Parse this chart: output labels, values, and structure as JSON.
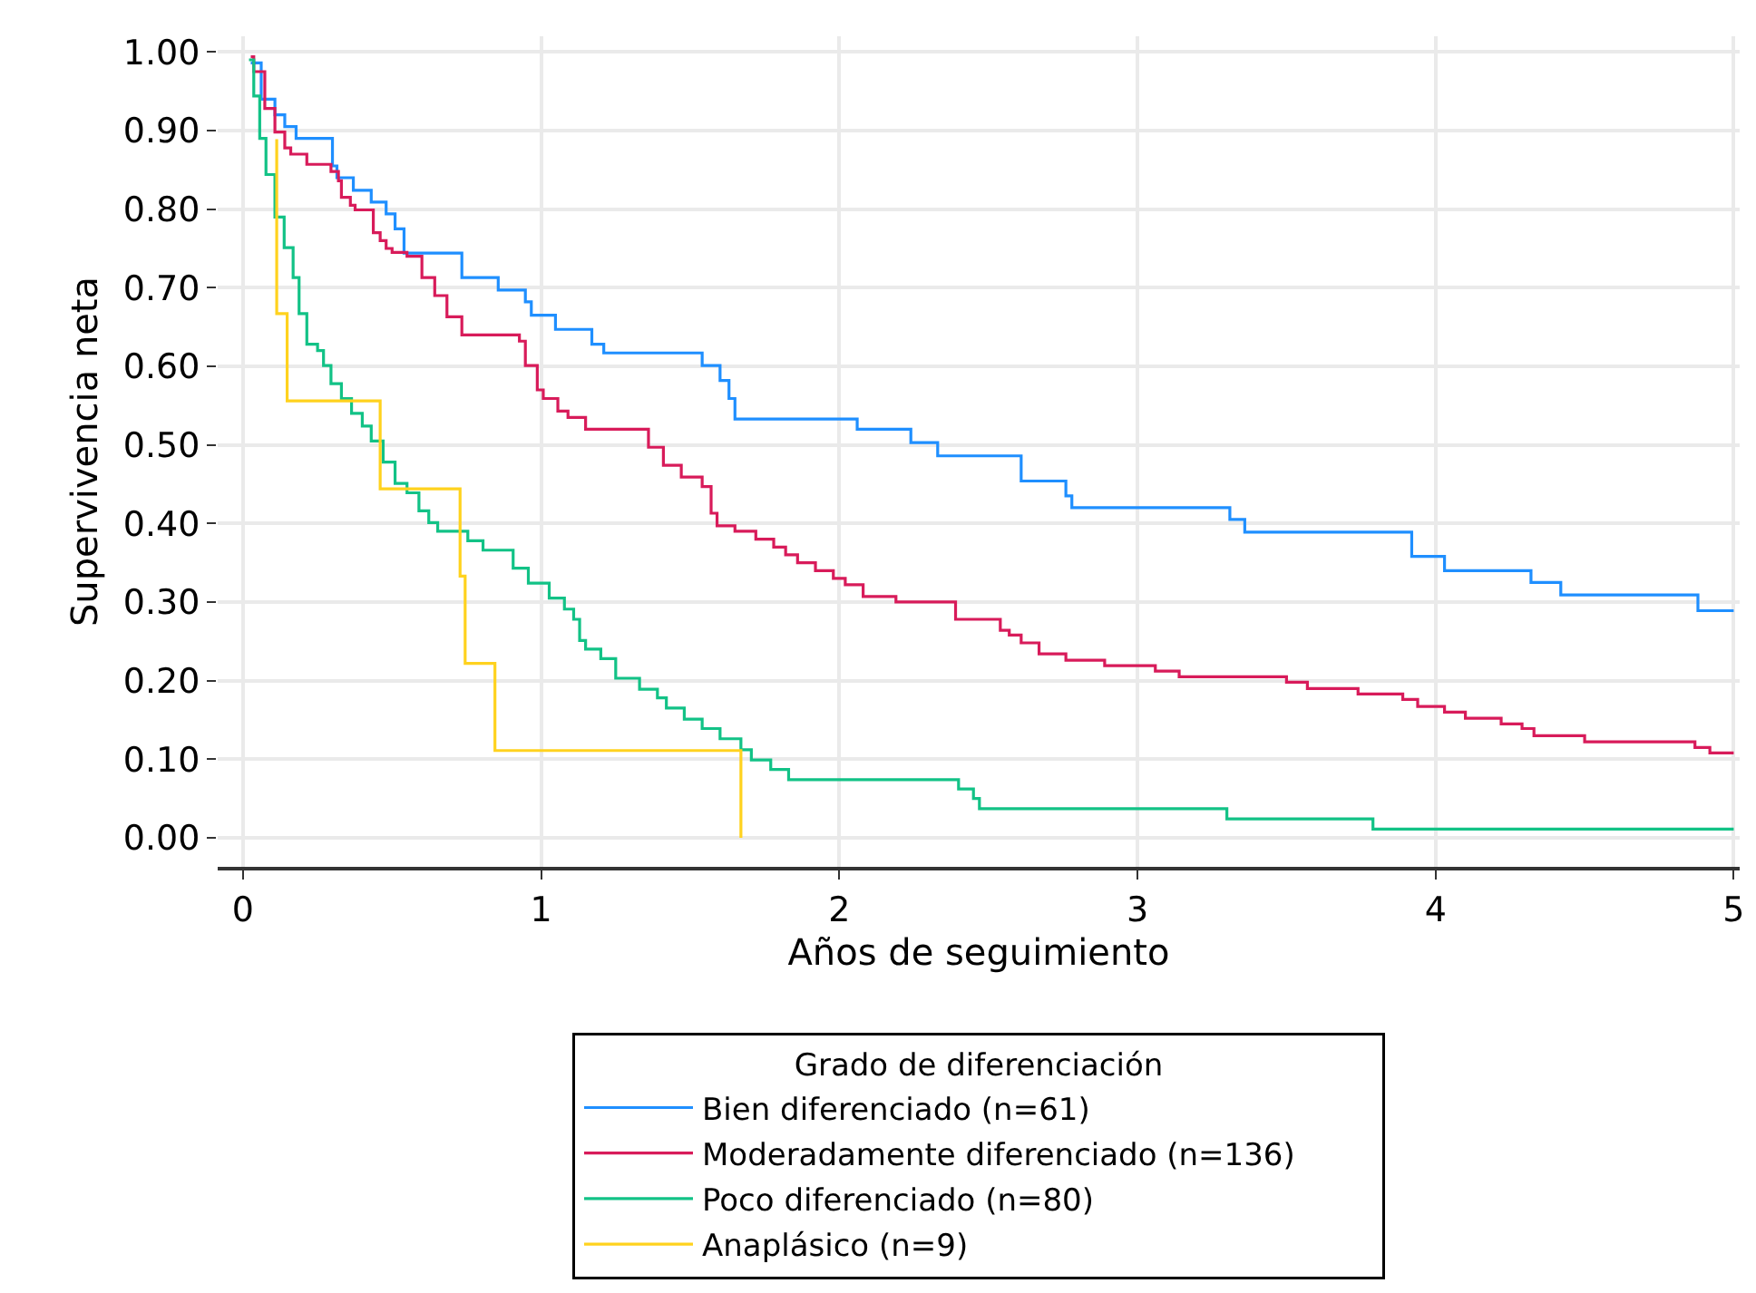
{
  "chart_data": {
    "type": "step",
    "xlabel": "Años de seguimiento",
    "ylabel": "Supervivencia neta",
    "legend_title": "Grado de diferenciación",
    "legend": "bottom",
    "grid": true,
    "xlim": [
      -0.085,
      5.02
    ],
    "ylim": [
      -0.037,
      1.02
    ],
    "xticks": [
      0,
      1,
      2,
      3,
      4,
      5
    ],
    "yticks": [
      {
        "value": 0,
        "label": "0.00"
      },
      {
        "value": 0.1,
        "label": "0.10"
      },
      {
        "value": 0.2,
        "label": "0.20"
      },
      {
        "value": 0.3,
        "label": "0.30"
      },
      {
        "value": 0.4,
        "label": "0.40"
      },
      {
        "value": 0.5,
        "label": "0.50"
      },
      {
        "value": 0.6,
        "label": "0.60"
      },
      {
        "value": 0.7,
        "label": "0.70"
      },
      {
        "value": 0.8,
        "label": "0.80"
      },
      {
        "value": 0.9,
        "label": "0.90"
      },
      {
        "value": 1,
        "label": "1.00"
      }
    ],
    "series": [
      {
        "name": "Bien diferenciado (n=61)",
        "color": "#1f8fff",
        "x": [
          0.026,
          0.061,
          0.107,
          0.14,
          0.178,
          0.3,
          0.315,
          0.37,
          0.43,
          0.48,
          0.51,
          0.54,
          0.734,
          0.856,
          0.947,
          0.967,
          1.048,
          1.17,
          1.21,
          1.54,
          1.6,
          1.63,
          1.65,
          2.06,
          2.24,
          2.33,
          2.61,
          2.76,
          2.78,
          3.31,
          3.36,
          3.92,
          4.03,
          4.32,
          4.42,
          4.88,
          5.0
        ],
        "values": [
          0.986,
          0.94,
          0.92,
          0.905,
          0.89,
          0.855,
          0.84,
          0.824,
          0.809,
          0.794,
          0.775,
          0.744,
          0.713,
          0.697,
          0.682,
          0.665,
          0.647,
          0.628,
          0.617,
          0.601,
          0.582,
          0.559,
          0.533,
          0.52,
          0.503,
          0.486,
          0.454,
          0.435,
          0.42,
          0.405,
          0.389,
          0.358,
          0.34,
          0.325,
          0.309,
          0.289,
          0.289
        ]
      },
      {
        "name": "Moderadamente diferenciado (n=136)",
        "color": "#d81b5a",
        "x": [
          0.026,
          0.036,
          0.073,
          0.107,
          0.14,
          0.16,
          0.214,
          0.295,
          0.32,
          0.33,
          0.36,
          0.376,
          0.437,
          0.46,
          0.48,
          0.5,
          0.55,
          0.6,
          0.643,
          0.684,
          0.734,
          0.927,
          0.947,
          0.987,
          1.007,
          1.056,
          1.09,
          1.149,
          1.36,
          1.41,
          1.47,
          1.54,
          1.57,
          1.59,
          1.65,
          1.72,
          1.78,
          1.82,
          1.86,
          1.92,
          1.98,
          2.02,
          2.08,
          2.19,
          2.39,
          2.54,
          2.57,
          2.61,
          2.67,
          2.76,
          2.89,
          3.06,
          3.14,
          3.5,
          3.57,
          3.74,
          3.89,
          3.94,
          4.03,
          4.1,
          4.22,
          4.29,
          4.33,
          4.5,
          4.87,
          4.92,
          5.0
        ],
        "values": [
          0.994,
          0.975,
          0.928,
          0.898,
          0.878,
          0.87,
          0.857,
          0.848,
          0.836,
          0.815,
          0.805,
          0.799,
          0.77,
          0.76,
          0.75,
          0.745,
          0.74,
          0.713,
          0.69,
          0.663,
          0.64,
          0.632,
          0.601,
          0.57,
          0.559,
          0.543,
          0.535,
          0.52,
          0.497,
          0.474,
          0.459,
          0.447,
          0.413,
          0.397,
          0.39,
          0.38,
          0.37,
          0.36,
          0.35,
          0.34,
          0.33,
          0.322,
          0.307,
          0.3,
          0.278,
          0.264,
          0.258,
          0.248,
          0.234,
          0.226,
          0.219,
          0.212,
          0.205,
          0.198,
          0.19,
          0.183,
          0.176,
          0.167,
          0.16,
          0.152,
          0.145,
          0.139,
          0.13,
          0.122,
          0.115,
          0.108,
          0.108
        ]
      },
      {
        "name": "Poco diferenciado (n=80)",
        "color": "#12c286",
        "x": [
          0.02,
          0.036,
          0.056,
          0.077,
          0.107,
          0.138,
          0.168,
          0.188,
          0.214,
          0.25,
          0.27,
          0.295,
          0.33,
          0.364,
          0.4,
          0.43,
          0.47,
          0.51,
          0.55,
          0.59,
          0.623,
          0.653,
          0.754,
          0.805,
          0.906,
          0.957,
          1.027,
          1.078,
          1.109,
          1.129,
          1.149,
          1.2,
          1.25,
          1.33,
          1.39,
          1.42,
          1.48,
          1.54,
          1.6,
          1.67,
          1.705,
          1.77,
          1.83,
          2.4,
          2.45,
          2.47,
          3.3,
          3.79,
          5.0
        ],
        "values": [
          0.99,
          0.944,
          0.89,
          0.844,
          0.79,
          0.751,
          0.713,
          0.667,
          0.628,
          0.62,
          0.601,
          0.578,
          0.559,
          0.54,
          0.524,
          0.505,
          0.478,
          0.451,
          0.439,
          0.416,
          0.401,
          0.39,
          0.378,
          0.366,
          0.343,
          0.324,
          0.305,
          0.291,
          0.278,
          0.251,
          0.24,
          0.228,
          0.203,
          0.189,
          0.178,
          0.165,
          0.151,
          0.139,
          0.126,
          0.112,
          0.099,
          0.087,
          0.074,
          0.062,
          0.05,
          0.037,
          0.024,
          0.011,
          0.011
        ]
      },
      {
        "name": "Anaplásico (n=9)",
        "color": "#ffd21e",
        "x": [
          0.113,
          0.113,
          0.148,
          0.46,
          0.728,
          0.745,
          0.845,
          1.67
        ],
        "values": [
          0.889,
          0.667,
          0.556,
          0.444,
          0.333,
          0.222,
          0.111,
          0.0
        ]
      }
    ]
  }
}
